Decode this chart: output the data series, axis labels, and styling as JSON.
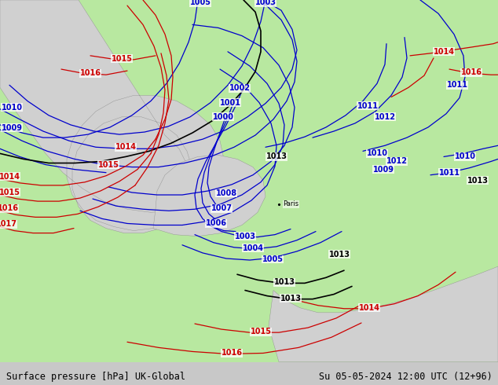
{
  "title_left": "Surface pressure [hPa] UK-Global",
  "title_right": "Su 05-05-2024 12:00 UTC (12+96)",
  "land_color": "#b8e8a0",
  "sea_color": "#d0d0d0",
  "blue": "#0000cc",
  "red": "#cc0000",
  "black": "#000000",
  "label_fs": 7.0,
  "lw": 0.9
}
